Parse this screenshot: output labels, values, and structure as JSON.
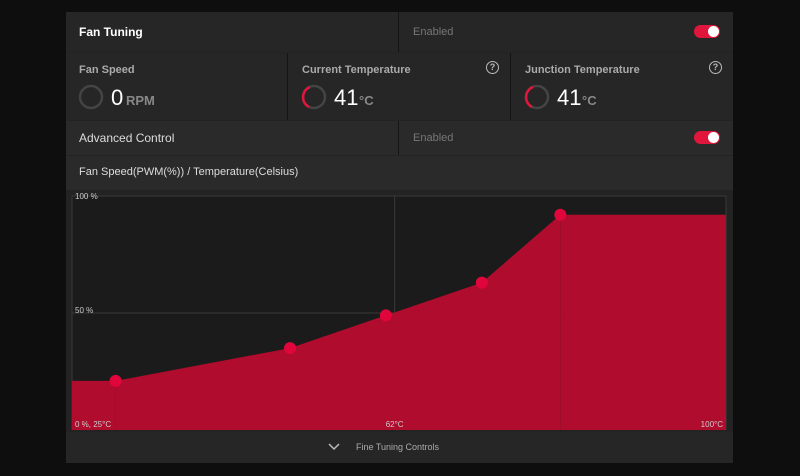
{
  "header": {
    "title": "Fan Tuning",
    "status": "Enabled"
  },
  "stats": [
    {
      "label": "Fan Speed",
      "value": 0,
      "unit": "RPM"
    },
    {
      "label": "Current Temperature",
      "value": 41,
      "unit": "°C"
    },
    {
      "label": "Junction Temperature",
      "value": 41,
      "unit": "°C"
    }
  ],
  "advanced": {
    "title": "Advanced Control",
    "status": "Enabled"
  },
  "chart_data": {
    "type": "area",
    "title": "Fan Speed(PWM(%)) / Temperature(Celsius)",
    "x": [
      30,
      50,
      61,
      72,
      81
    ],
    "values": [
      21,
      35,
      49,
      63,
      92
    ],
    "color": "#b00c2e",
    "point_color": "#e0063c",
    "xlim": [
      25,
      100
    ],
    "ylim": [
      0,
      100
    ],
    "xticks": [
      {
        "value": 25,
        "label": "0 %, 25°C"
      },
      {
        "value": 62,
        "label": "62°C"
      },
      {
        "value": 100,
        "label": "100°C"
      }
    ],
    "yticks": [
      {
        "value": 100,
        "label": "100 %"
      },
      {
        "value": 50,
        "label": "50 %"
      }
    ],
    "grid": true
  },
  "footer": {
    "label": "Fine Tuning Controls"
  }
}
